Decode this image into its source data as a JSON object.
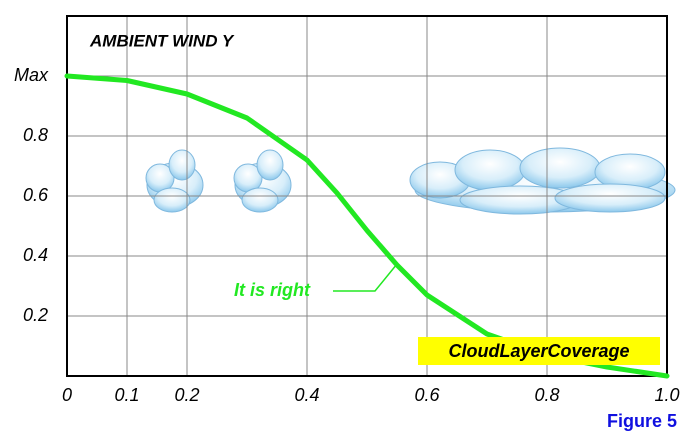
{
  "chart_data": {
    "type": "line",
    "title": "AMBIENT WIND Y",
    "annotation": "It is right",
    "series_label": "CloudLayerCoverage",
    "figure_label": "Figure 5",
    "x": [
      0,
      0.1,
      0.2,
      0.3,
      0.4,
      0.45,
      0.5,
      0.55,
      0.6,
      0.7,
      0.8,
      0.9,
      1.0
    ],
    "series": [
      {
        "color": "#22e822",
        "values": [
          1.0,
          0.985,
          0.94,
          0.86,
          0.72,
          0.61,
          0.485,
          0.37,
          0.27,
          0.14,
          0.07,
          0.03,
          0
        ]
      }
    ],
    "xlim": [
      0,
      1.0
    ],
    "ylim": [
      0,
      1.2
    ],
    "xticks": [
      0,
      0.1,
      0.2,
      0.4,
      0.6,
      0.8,
      {
        "value": 1,
        "label": "1.0"
      }
    ],
    "yticks": [
      0.2,
      0.4,
      0.6,
      0.8,
      {
        "value": 1,
        "label": "Max"
      }
    ],
    "grid": true
  }
}
